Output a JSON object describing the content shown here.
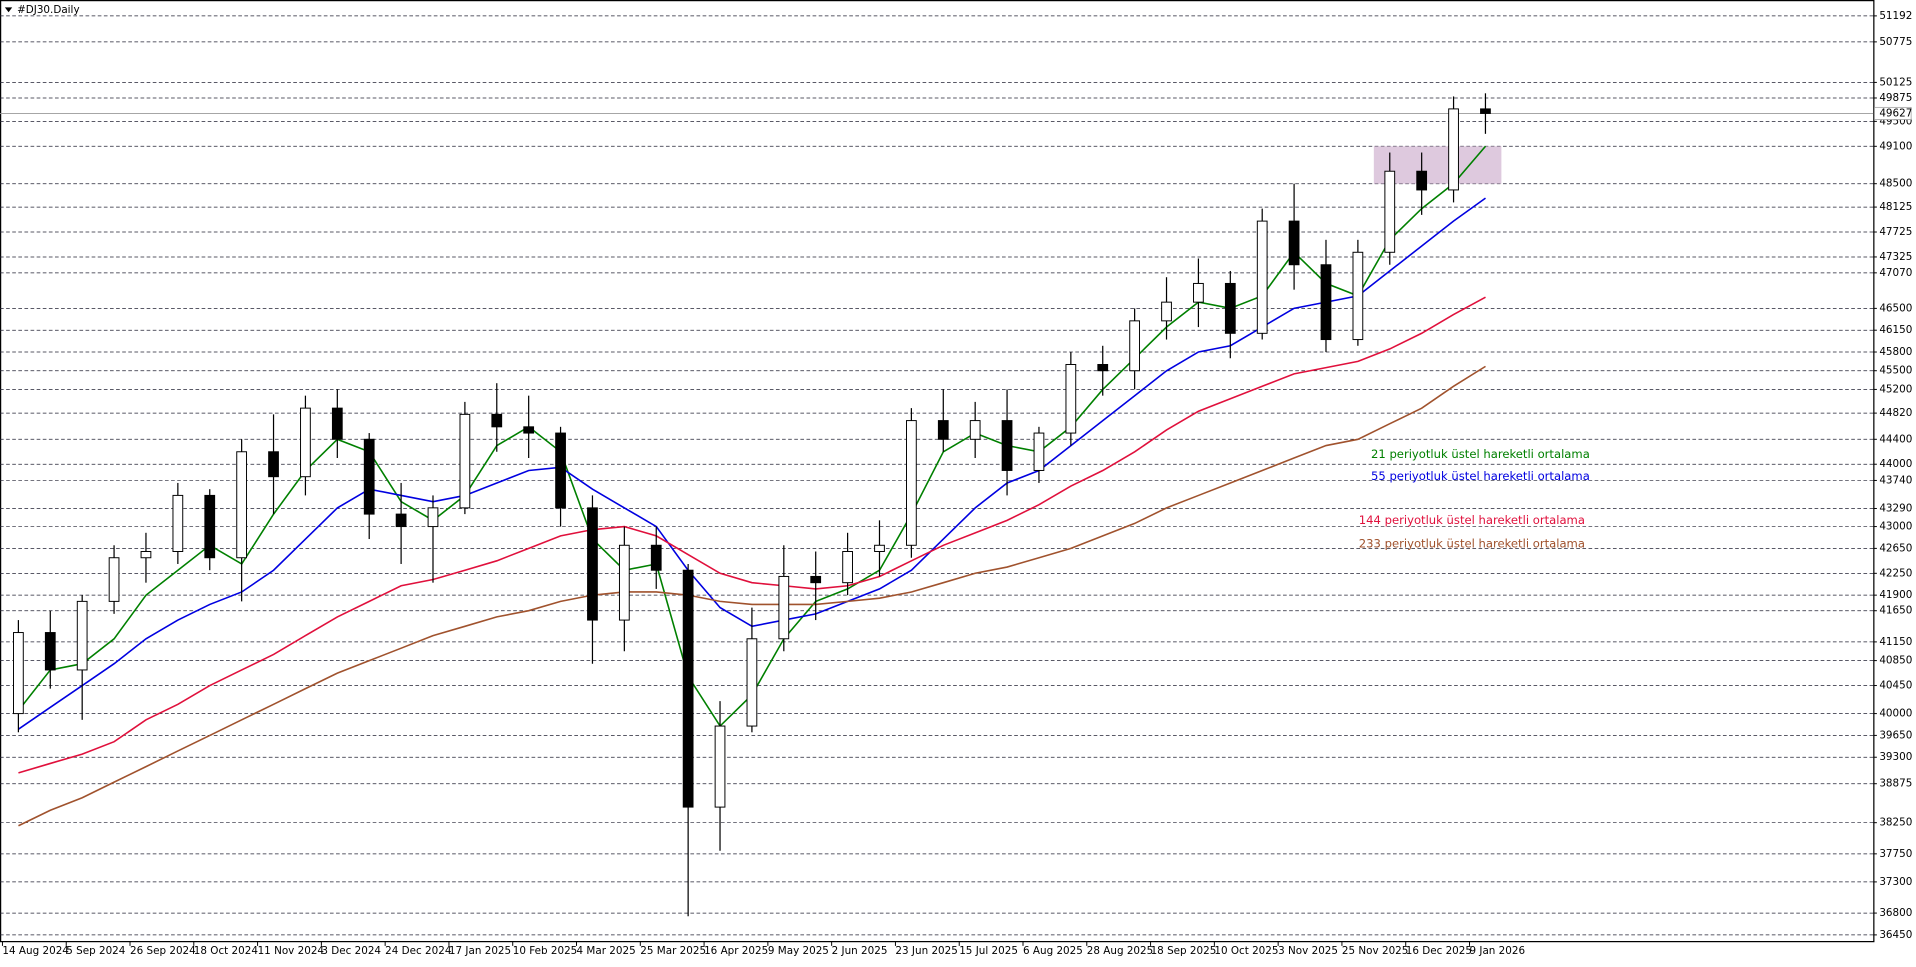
{
  "chart_data": {
    "type": "candlestick",
    "title": "#DJ30.Daily",
    "categories": [
      "14 Aug 2024",
      null,
      "5 Sep 2024",
      null,
      "26 Sep 2024",
      null,
      "18 Oct 2024",
      null,
      "11 Nov 2024",
      null,
      "3 Dec 2024",
      null,
      "24 Dec 2024",
      null,
      "17 Jan 2025",
      null,
      "10 Feb 2025",
      null,
      "4 Mar 2025",
      null,
      "25 Mar 2025",
      null,
      "16 Apr 2025",
      null,
      "9 May 2025",
      null,
      "2 Jun 2025",
      null,
      "23 Jun 2025",
      null,
      "15 Jul 2025",
      null,
      "6 Aug 2025",
      null,
      "28 Aug 2025",
      null,
      "18 Sep 2025",
      null,
      "10 Oct 2025",
      null,
      "3 Nov 2025",
      null,
      "25 Nov 2025",
      null,
      "16 Dec 2025",
      null,
      "9 Jan 2026",
      null,
      null
    ],
    "ohlc": {
      "open": [
        40000,
        41300,
        40700,
        41800,
        42500,
        42600,
        43500,
        42500,
        44200,
        43800,
        44900,
        44400,
        43200,
        43000,
        43300,
        44800,
        44600,
        44500,
        43300,
        41500,
        42700,
        42300,
        38500,
        39800,
        41200,
        42200,
        42100,
        42600,
        42700,
        44700,
        44400,
        44700,
        43900,
        44500,
        45600,
        45500,
        46300,
        46600,
        46900,
        46100,
        47900,
        47200,
        46000,
        47400,
        48700,
        48400,
        49700
      ],
      "high": [
        41500,
        41650,
        41900,
        42700,
        42900,
        43700,
        43600,
        44400,
        44800,
        45100,
        45200,
        44500,
        43700,
        43500,
        45000,
        45300,
        45100,
        44600,
        43500,
        43000,
        43000,
        42400,
        40200,
        41700,
        42700,
        42600,
        42900,
        43100,
        44900,
        45200,
        45000,
        45200,
        44600,
        45800,
        45900,
        46500,
        47000,
        47300,
        47100,
        48100,
        48500,
        47600,
        47600,
        49000,
        49000,
        49900,
        49950
      ],
      "low": [
        39700,
        40400,
        39900,
        41600,
        42100,
        42400,
        42300,
        41800,
        43200,
        43500,
        44100,
        42800,
        42400,
        42100,
        43200,
        44200,
        44100,
        43000,
        40800,
        41000,
        42000,
        36750,
        37800,
        39700,
        41000,
        41500,
        41900,
        42200,
        42500,
        44200,
        44100,
        43500,
        43700,
        44300,
        45100,
        45200,
        46000,
        46200,
        45700,
        46000,
        46800,
        45800,
        45900,
        47200,
        48000,
        48200,
        49300
      ],
      "close": [
        41300,
        40700,
        41800,
        42500,
        42600,
        43500,
        42500,
        44200,
        43800,
        44900,
        44400,
        43200,
        43000,
        43300,
        44800,
        44600,
        44500,
        43300,
        41500,
        42700,
        42300,
        38500,
        39800,
        41200,
        42200,
        42100,
        42600,
        42700,
        44700,
        44400,
        44700,
        43900,
        44500,
        45600,
        45500,
        46300,
        46600,
        46900,
        46100,
        47900,
        47200,
        46000,
        47400,
        48700,
        48400,
        49700,
        49627
      ]
    },
    "lines": [
      {
        "label": "21 periyotluk üstel hareketli ortalama",
        "color": "#008000",
        "values": [
          40050,
          40700,
          40800,
          41200,
          41900,
          42300,
          42700,
          42400,
          43200,
          43900,
          44400,
          44200,
          43400,
          43100,
          43500,
          44300,
          44600,
          44200,
          42800,
          42300,
          42400,
          40600,
          39800,
          40300,
          41200,
          41800,
          42000,
          42300,
          43200,
          44200,
          44500,
          44300,
          44200,
          44600,
          45200,
          45700,
          46200,
          46600,
          46500,
          46700,
          47400,
          46900,
          46700,
          47600,
          48100,
          48500,
          49100
        ]
      },
      {
        "label": "55 periyotluk üstel hareketli ortalama",
        "color": "#0000e0",
        "values": [
          39750,
          40100,
          40450,
          40800,
          41200,
          41500,
          41750,
          41950,
          42300,
          42800,
          43300,
          43600,
          43500,
          43400,
          43500,
          43700,
          43900,
          43950,
          43600,
          43300,
          43000,
          42300,
          41700,
          41400,
          41500,
          41600,
          41800,
          42000,
          42300,
          42800,
          43300,
          43700,
          43900,
          44300,
          44700,
          45100,
          45500,
          45800,
          45900,
          46200,
          46500,
          46600,
          46700,
          47100,
          47500,
          47900,
          48270
        ]
      },
      {
        "label": "144 periyotluk üstel hareketli ortalama",
        "color": "#e0103c",
        "values": [
          39050,
          39200,
          39350,
          39550,
          39900,
          40150,
          40450,
          40700,
          40950,
          41250,
          41550,
          41800,
          42050,
          42150,
          42300,
          42450,
          42650,
          42850,
          42950,
          43000,
          42850,
          42550,
          42250,
          42100,
          42050,
          42000,
          42050,
          42200,
          42450,
          42700,
          42900,
          43100,
          43350,
          43650,
          43900,
          44200,
          44550,
          44850,
          45050,
          45250,
          45450,
          45550,
          45650,
          45850,
          46100,
          46400,
          46680
        ]
      },
      {
        "label": "233 periyotluk üstel hareketli ortalama",
        "color": "#a0522d",
        "values": [
          38200,
          38450,
          38650,
          38900,
          39150,
          39400,
          39650,
          39900,
          40150,
          40400,
          40650,
          40850,
          41050,
          41250,
          41400,
          41550,
          41650,
          41800,
          41900,
          41950,
          41950,
          41900,
          41800,
          41750,
          41750,
          41750,
          41800,
          41850,
          41950,
          42100,
          42250,
          42350,
          42500,
          42650,
          42850,
          43050,
          43300,
          43500,
          43700,
          43900,
          44100,
          44300,
          44400,
          44650,
          44900,
          45250,
          45570
        ]
      }
    ],
    "zones": [
      {
        "y": [
          48500,
          49100
        ],
        "x": [
          43,
          46
        ],
        "color": "#d8bfd8"
      }
    ],
    "last_price": 49627,
    "ylim": [
      36352,
      51388
    ],
    "yticks": [
      51192,
      50775,
      50125,
      49875,
      49500,
      49100,
      48500,
      48125,
      47725,
      47325,
      47070,
      46500,
      46150,
      45800,
      45500,
      45200,
      44820,
      44400,
      44000,
      43740,
      43290,
      43000,
      42650,
      42250,
      41900,
      41650,
      41150,
      40850,
      40450,
      40000,
      39650,
      39300,
      38875,
      38250,
      37750,
      37300,
      36800,
      36450
    ],
    "grid": true
  }
}
